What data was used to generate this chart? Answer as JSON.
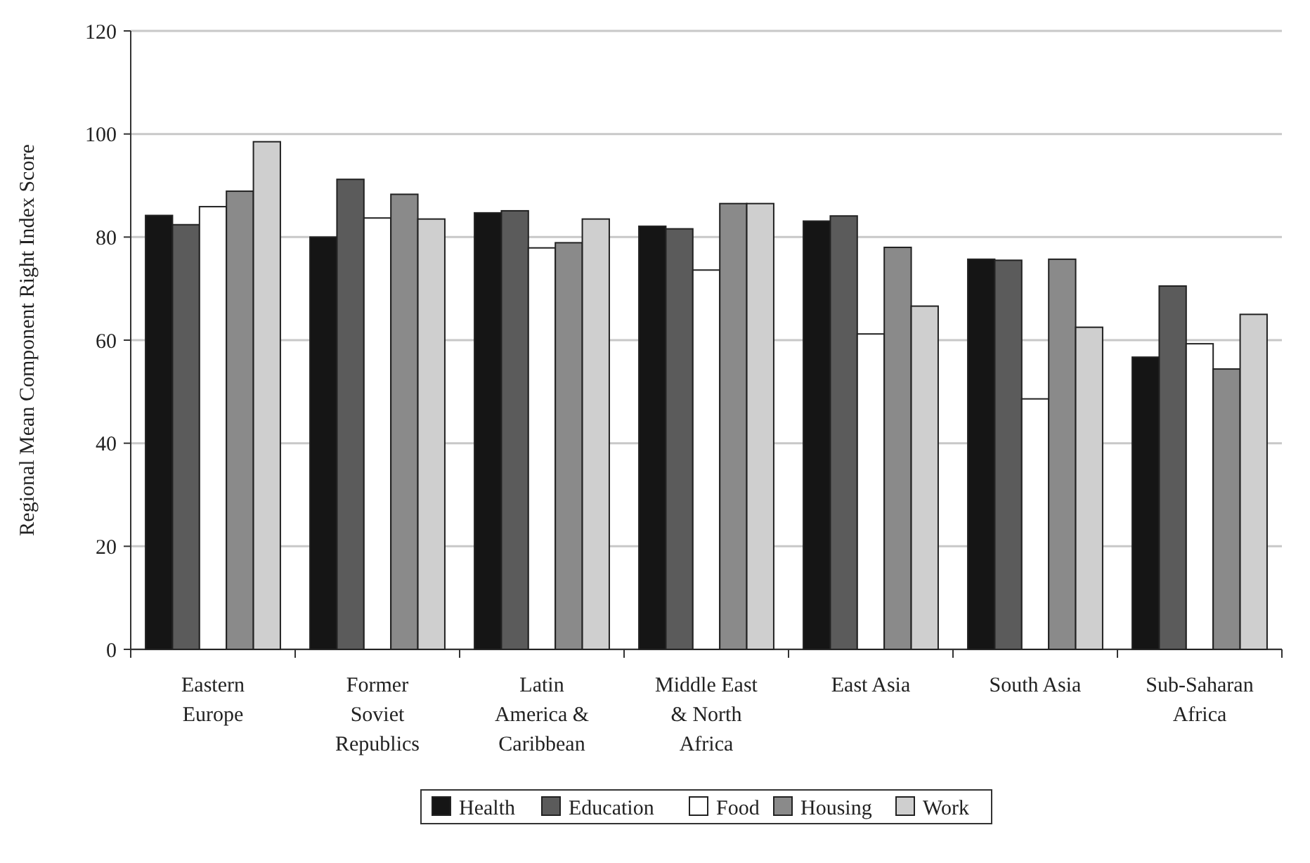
{
  "chart_data": {
    "type": "bar",
    "ylabel": "Regional Mean Component Right Index Score",
    "categories": [
      "Eastern Europe",
      "Former Soviet Republics",
      "Latin America & Caribbean",
      "Middle East & North Africa",
      "East Asia",
      "South Asia",
      "Sub-Saharan Africa"
    ],
    "series": [
      {
        "name": "Health",
        "color": "#151515",
        "values": [
          84.2,
          80,
          84.7,
          82.1,
          83.1,
          75.7,
          56.7
        ]
      },
      {
        "name": "Education",
        "color": "#5b5b5b",
        "values": [
          82.4,
          91.2,
          85.1,
          81.6,
          84.1,
          75.5,
          70.5
        ]
      },
      {
        "name": "Food",
        "color": "#ffffff",
        "values": [
          85.9,
          83.7,
          77.9,
          73.6,
          61.2,
          48.6,
          59.3
        ]
      },
      {
        "name": "Housing",
        "color": "#8a8a8a",
        "values": [
          88.9,
          88.3,
          78.9,
          86.5,
          78,
          75.7,
          54.4
        ]
      },
      {
        "name": "Work",
        "color": "#cfcfcf",
        "values": [
          98.5,
          83.5,
          83.5,
          86.5,
          66.6,
          62.5,
          65
        ]
      }
    ],
    "ylim": [
      0,
      120
    ],
    "yticks": [
      0,
      20,
      40,
      60,
      80,
      100,
      120
    ],
    "grid": "y",
    "legend": "bottom"
  }
}
